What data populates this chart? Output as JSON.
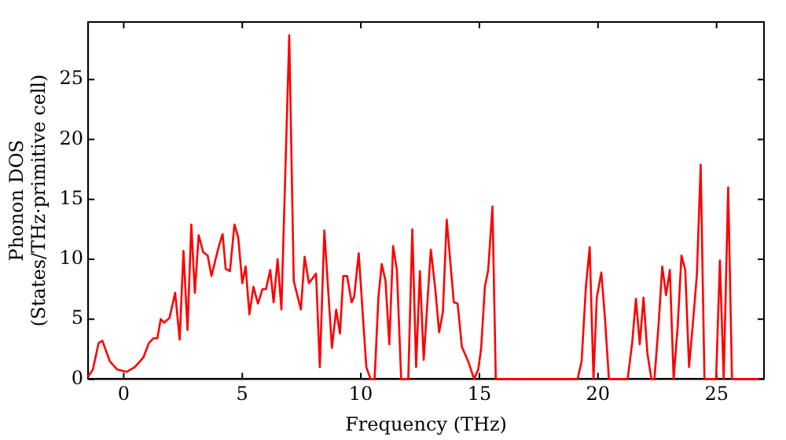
{
  "chart_data": {
    "type": "line",
    "xlabel": "Frequency (THz)",
    "ylabel": "Phonon DOS\n(States/THz·primitive cell)",
    "xlim": [
      -1.5,
      27
    ],
    "ylim": [
      0,
      29.8
    ],
    "xticks": [
      0,
      5,
      10,
      15,
      20,
      25
    ],
    "yticks": [
      0,
      5,
      10,
      15,
      20,
      25
    ],
    "grid": false,
    "legend": false,
    "marker": "none",
    "line_style": "solid",
    "series": [
      {
        "color": "#ff0000",
        "x": [
          -1.5,
          -1.3,
          -1.06,
          -0.9,
          -0.59,
          -0.28,
          0.12,
          0.47,
          0.83,
          1.06,
          1.25,
          1.42,
          1.56,
          1.7,
          1.93,
          2.17,
          2.36,
          2.52,
          2.69,
          2.85,
          3.0,
          3.16,
          3.35,
          3.54,
          3.7,
          4.0,
          4.17,
          4.3,
          4.48,
          4.67,
          4.83,
          5.0,
          5.14,
          5.3,
          5.47,
          5.66,
          5.85,
          6.0,
          6.18,
          6.32,
          6.49,
          6.65,
          6.98,
          7.17,
          7.47,
          7.63,
          7.81,
          8.11,
          8.27,
          8.46,
          8.78,
          8.96,
          9.12,
          9.26,
          9.42,
          9.61,
          9.72,
          9.91,
          10.23,
          10.41,
          10.58,
          10.74,
          10.88,
          11.04,
          11.2,
          11.36,
          11.52,
          11.7,
          12.0,
          12.17,
          12.33,
          12.49,
          12.65,
          12.95,
          13.13,
          13.3,
          13.46,
          13.62,
          13.92,
          14.08,
          14.26,
          14.56,
          14.77,
          14.95,
          15.07,
          15.23,
          15.37,
          15.55,
          15.69,
          19.14,
          19.31,
          19.49,
          19.65,
          19.81,
          19.95,
          20.14,
          20.3,
          20.46,
          21.25,
          21.44,
          21.6,
          21.76,
          21.92,
          22.08,
          22.25,
          22.38,
          22.55,
          22.71,
          22.87,
          23.03,
          23.19,
          23.36,
          23.52,
          23.68,
          23.84,
          24.0,
          24.17,
          24.33,
          24.49,
          24.98,
          25.14,
          25.3,
          25.49,
          25.65,
          26.8
        ],
        "values": [
          0.2,
          0.8,
          3.0,
          3.2,
          1.5,
          0.8,
          0.6,
          1.0,
          1.8,
          3.0,
          3.4,
          3.4,
          5.0,
          4.7,
          5.1,
          7.2,
          3.3,
          10.7,
          4.1,
          12.9,
          7.2,
          12.0,
          10.6,
          10.3,
          8.6,
          11.0,
          12.1,
          9.2,
          9.0,
          12.9,
          11.8,
          8.0,
          9.4,
          5.4,
          7.7,
          6.3,
          7.5,
          7.5,
          9.1,
          6.4,
          10.0,
          5.8,
          28.7,
          8.2,
          5.8,
          10.2,
          8.0,
          8.8,
          1.0,
          12.4,
          2.6,
          5.8,
          3.8,
          8.6,
          8.6,
          6.4,
          6.9,
          10.5,
          1.0,
          0,
          0,
          6.8,
          9.6,
          8.2,
          2.9,
          11.1,
          9.1,
          0,
          0,
          12.5,
          1.0,
          9.0,
          1.6,
          10.8,
          7.7,
          3.9,
          5.6,
          13.3,
          6.4,
          6.3,
          2.7,
          1.3,
          0,
          0.8,
          2.5,
          7.7,
          9.1,
          14.4,
          0,
          0,
          1.5,
          7.7,
          11.0,
          0,
          6.8,
          8.9,
          4.9,
          0,
          0,
          3.0,
          6.7,
          2.9,
          6.8,
          2.2,
          0,
          0,
          4.4,
          9.4,
          7.0,
          9.1,
          0,
          4.4,
          10.3,
          9.1,
          1.0,
          4.6,
          8.7,
          17.9,
          0,
          0,
          9.9,
          0,
          16.0,
          0,
          0
        ]
      }
    ]
  }
}
